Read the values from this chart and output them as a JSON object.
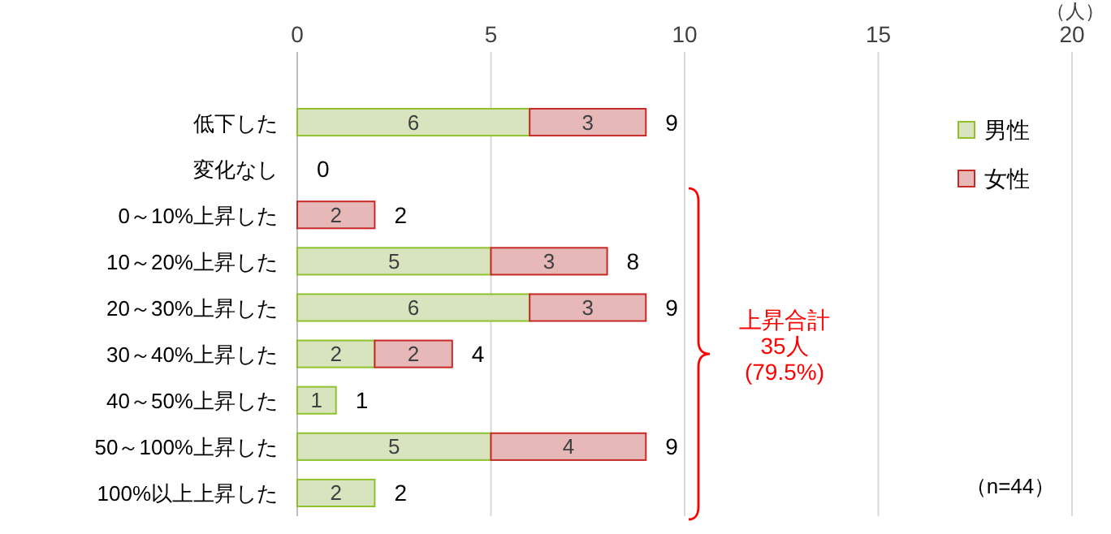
{
  "chart_data": {
    "type": "bar",
    "orientation": "horizontal",
    "stacked": true,
    "xlabel": "（人）",
    "categories": [
      "低下した",
      "変化なし",
      "0～10%上昇した",
      "10～20%上昇した",
      "20～30%上昇した",
      "30～40%上昇した",
      "40～50%上昇した",
      "50～100%上昇した",
      "100%以上上昇した"
    ],
    "series": [
      {
        "name": "男性",
        "color": "#d7e4bd",
        "values": [
          6,
          0,
          0,
          5,
          6,
          2,
          1,
          5,
          2
        ],
        "value_labels": [
          "6",
          null,
          null,
          "5",
          "6",
          "2",
          "1",
          "5",
          "2"
        ]
      },
      {
        "name": "女性",
        "color": "#e6b9b8",
        "values": [
          3,
          0,
          2,
          3,
          3,
          2,
          0,
          4,
          0
        ],
        "value_labels": [
          "3",
          null,
          "2",
          "3",
          "3",
          "2",
          null,
          "4",
          null
        ]
      }
    ],
    "totals": [
      "9",
      "0",
      "2",
      "8",
      "9",
      "4",
      "1",
      "9",
      "2"
    ],
    "xlim": [
      0,
      20
    ],
    "xticks": [
      0,
      5,
      10,
      15,
      20
    ],
    "grid": "x",
    "legend": "top right",
    "annotations": [
      "上昇合計\n35人\n(79.5%)",
      "（n=44）"
    ]
  }
}
